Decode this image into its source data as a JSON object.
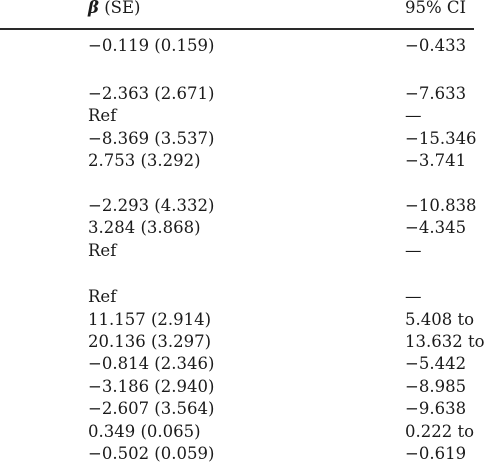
{
  "header": {
    "beta_symbol": "β",
    "beta_rest": " (SE)",
    "ci_label": "95% CI"
  },
  "rows": [
    {
      "beta": "−0.119 (0.159)",
      "ci": "−0.433"
    },
    {
      "beta": "−2.363 (2.671)",
      "ci": "−7.633"
    },
    {
      "beta": "Ref",
      "ci": "—"
    },
    {
      "beta": "−8.369 (3.537)",
      "ci": "−15.346"
    },
    {
      "beta": "2.753 (3.292)",
      "ci": "−3.741"
    },
    {
      "beta": "−2.293 (4.332)",
      "ci": "−10.838"
    },
    {
      "beta": "3.284 (3.868)",
      "ci": "−4.345"
    },
    {
      "beta": "Ref",
      "ci": "—"
    },
    {
      "beta": "Ref",
      "ci": "—"
    },
    {
      "beta": "11.157 (2.914)",
      "ci": "5.408 to"
    },
    {
      "beta": "20.136 (3.297)",
      "ci": "13.632 to"
    },
    {
      "beta": "−0.814 (2.346)",
      "ci": "−5.442"
    },
    {
      "beta": "−3.186 (2.940)",
      "ci": "−8.985"
    },
    {
      "beta": "−2.607 (3.564)",
      "ci": "−9.638"
    },
    {
      "beta": "0.349 (0.065)",
      "ci": "0.222 to"
    },
    {
      "beta": "−0.502 (0.059)",
      "ci": "−0.619"
    }
  ]
}
